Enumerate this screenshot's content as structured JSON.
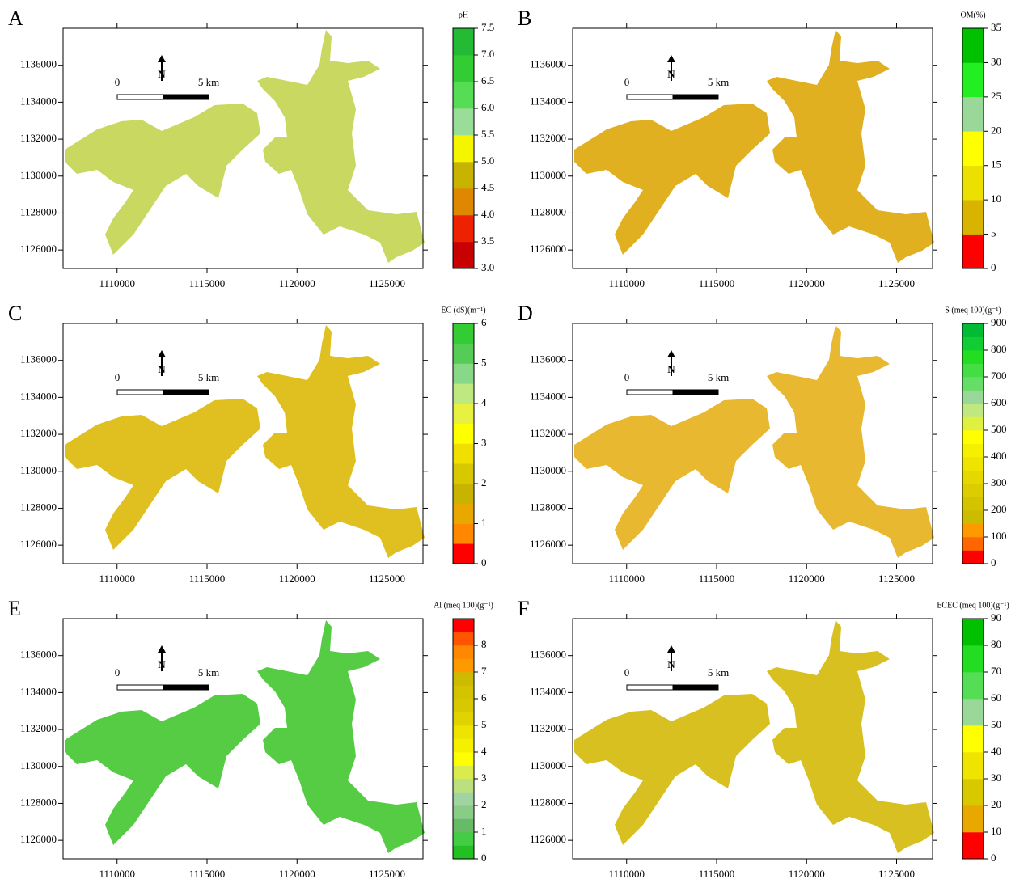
{
  "scale_bar": {
    "start": "0",
    "end": "5 km"
  },
  "north": "N",
  "xlim": [
    1107000,
    1127000
  ],
  "ylim": [
    1125000,
    1138000
  ],
  "xticks": [
    1110000,
    1115000,
    1120000,
    1125000
  ],
  "yticks": [
    1126000,
    1128000,
    1130000,
    1132000,
    1134000,
    1136000
  ],
  "panels": [
    {
      "letter": "A",
      "legend_title": "pH",
      "legend_lim": [
        3,
        7.5
      ],
      "legend_ticks": [
        {
          "value": 3,
          "label": "3.0"
        },
        {
          "value": 3.5,
          "label": "3.5"
        },
        {
          "value": 4,
          "label": "4.0"
        },
        {
          "value": 4.5,
          "label": "4.5"
        },
        {
          "value": 5,
          "label": "5.0"
        },
        {
          "value": 5.5,
          "label": "5.5"
        },
        {
          "value": 6,
          "label": "6.0"
        },
        {
          "value": 6.5,
          "label": "6.5"
        },
        {
          "value": 7,
          "label": "7.0"
        },
        {
          "value": 7.5,
          "label": "7.5"
        }
      ],
      "band_colors": [
        "#c80000",
        "#ee2200",
        "#dd8800",
        "#c8b400",
        "#f5f500",
        "#99dd99",
        "#55dd55",
        "#33cc33",
        "#22bb33"
      ],
      "map_color": "#c8d860"
    },
    {
      "letter": "B",
      "legend_title": "OM(%)",
      "legend_lim": [
        0,
        35
      ],
      "legend_ticks": [
        0,
        5,
        10,
        15,
        20,
        25,
        30,
        35
      ],
      "band_colors": [
        "#ff0000",
        "#d8b400",
        "#ebe000",
        "#ffff00",
        "#99d899",
        "#22ee22",
        "#00c000"
      ],
      "map_color": "#e0b020"
    },
    {
      "letter": "C",
      "legend_title": "EC (dS)(m⁻¹)",
      "legend_lim": [
        0,
        6
      ],
      "legend_ticks": [
        0,
        1,
        2,
        3,
        4,
        5,
        6
      ],
      "band_colors": [
        "#ff0000",
        "#ff8800",
        "#e8a800",
        "#c8b400",
        "#d8c800",
        "#f0e000",
        "#ffff00",
        "#e8f040",
        "#c0e880",
        "#88d888",
        "#55cc55",
        "#33cc33"
      ],
      "map_color": "#e0c020"
    },
    {
      "letter": "D",
      "legend_title": "S (meq 100)(g⁻¹)",
      "legend_lim": [
        0,
        900
      ],
      "legend_ticks": [
        0,
        100,
        200,
        300,
        400,
        500,
        600,
        700,
        800,
        900
      ],
      "band_colors": [
        "#ff0000",
        "#ff6600",
        "#ff9900",
        "#ccbb00",
        "#d4c400",
        "#dccc00",
        "#e4d800",
        "#eee400",
        "#f5f000",
        "#ffff00",
        "#e0f040",
        "#c0e880",
        "#99d899",
        "#66dd66",
        "#44dd44",
        "#22dd22",
        "#11cc33",
        "#00bb33"
      ],
      "map_color": "#e8b830"
    },
    {
      "letter": "E",
      "legend_title": "Al (meq 100)(g⁻¹)",
      "legend_lim": [
        0,
        9
      ],
      "legend_ticks": [
        0,
        1,
        2,
        3,
        4,
        5,
        6,
        7,
        8
      ],
      "band_colors": [
        "#22c022",
        "#44cc44",
        "#66bb66",
        "#88cc88",
        "#a0d4a0",
        "#bbe080",
        "#d8ec50",
        "#ffff00",
        "#f5f000",
        "#eee400",
        "#e0d400",
        "#d8c800",
        "#d4c400",
        "#ccbb00",
        "#ff9900",
        "#ff8800",
        "#ff5500",
        "#ff0000"
      ],
      "map_color": "#55cc44"
    },
    {
      "letter": "F",
      "legend_title": "ECEC (meq 100)(g⁻¹)",
      "legend_lim": [
        0,
        90
      ],
      "legend_ticks": [
        0,
        10,
        20,
        30,
        40,
        50,
        60,
        70,
        80,
        90
      ],
      "band_colors": [
        "#ff0000",
        "#e8a800",
        "#d8c800",
        "#eee400",
        "#ffff00",
        "#99d899",
        "#55dd55",
        "#22dd22",
        "#00c000"
      ],
      "map_color": "#d8c020"
    }
  ]
}
